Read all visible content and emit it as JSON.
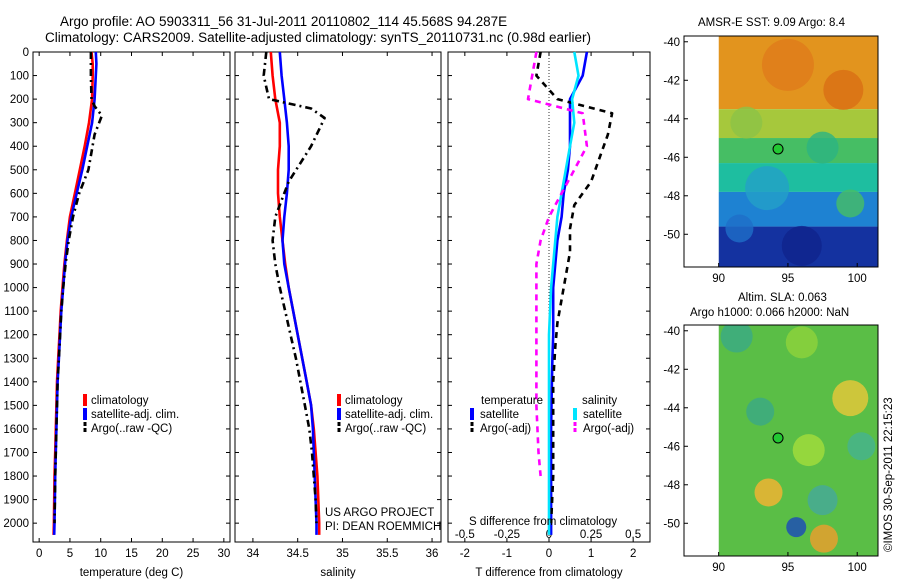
{
  "header": {
    "title_line1": "Argo profile: AO 5903311_56 31-Jul-2011 20110802_114 45.568S 94.287E",
    "title_line2": "Climatology: CARS2009. Satellite-adjusted climatology: synTS_20110731.nc (0.98d earlier)"
  },
  "colors": {
    "climatology": "#ff0000",
    "satellite": "#0000ff",
    "argo": "#000000",
    "sal_satellite": "#00e5ff",
    "sal_argo": "#ff00ff"
  },
  "panels": {
    "temp_legend": [
      "climatology",
      "satellite-adj. clim.",
      "Argo(..raw -QC)"
    ],
    "sal_legend": [
      "climatology",
      "satellite-adj. clim.",
      "Argo(..raw -QC)"
    ],
    "sal_credit_line1": "US ARGO PROJECT",
    "sal_credit_line2": "PI: DEAN ROEMMICH",
    "diff_legend_temp_header": "temperature",
    "diff_legend_sal_header": "salinity",
    "diff_legend_temp": [
      "satellite",
      "Argo(-adj)"
    ],
    "diff_legend_sal": [
      "satellite",
      "Argo(-adj)"
    ],
    "diff_top_axis_label": "S difference from climatology",
    "sst_title": "AMSR-E SST: 9.09 Argo: 8.4",
    "sla_title_line1": "Altim. SLA: 0.063",
    "sla_title_line2": "Argo h1000: 0.066 h2000: NaN",
    "timestamp": "©IMOS 30-Sep-2011 22:15:23"
  },
  "chart_data": [
    {
      "type": "line",
      "panel": "temperature",
      "xlabel": "temperature (deg C)",
      "ylabel": "",
      "xlim": [
        -1,
        31
      ],
      "ylim": [
        2080,
        0
      ],
      "xticks": [
        0,
        5,
        10,
        15,
        20,
        25,
        30
      ],
      "yticks": [
        0,
        100,
        200,
        300,
        400,
        500,
        600,
        700,
        800,
        900,
        1000,
        1100,
        1200,
        1300,
        1400,
        1500,
        1600,
        1700,
        1800,
        1900,
        2000
      ],
      "series": [
        {
          "name": "climatology",
          "color": "#ff0000",
          "dash": "",
          "x": [
            8.5,
            8.7,
            8.7,
            8.6,
            8.1,
            7.4,
            6.6,
            5.8,
            5.0,
            4.5,
            4.1,
            3.8,
            3.5,
            3.3,
            3.1,
            2.9,
            2.8,
            2.7,
            2.6,
            2.5,
            2.45,
            2.4,
            2.35
          ],
          "y": [
            0,
            50,
            100,
            200,
            300,
            400,
            500,
            600,
            700,
            800,
            900,
            1000,
            1100,
            1200,
            1300,
            1400,
            1500,
            1600,
            1700,
            1800,
            1900,
            2000,
            2050
          ]
        },
        {
          "name": "satellite-adj. clim.",
          "color": "#0000ff",
          "dash": "",
          "x": [
            9.2,
            9.3,
            9.2,
            9.0,
            8.6,
            7.8,
            7.0,
            6.1,
            5.2,
            4.6,
            4.2,
            3.9,
            3.6,
            3.4,
            3.2,
            3.0,
            2.9,
            2.8,
            2.7,
            2.6,
            2.55,
            2.5,
            2.45
          ],
          "y": [
            0,
            50,
            100,
            200,
            300,
            400,
            500,
            600,
            700,
            800,
            900,
            1000,
            1100,
            1200,
            1300,
            1400,
            1500,
            1600,
            1700,
            1800,
            1900,
            2000,
            2050
          ]
        },
        {
          "name": "Argo(..raw -QC)",
          "color": "#000000",
          "dash": "7,4,2,4",
          "x": [
            8.4,
            8.4,
            8.5,
            9.0,
            10.2,
            9.0,
            8.0,
            6.5,
            5.5,
            4.8,
            4.3,
            3.9,
            3.6,
            3.4,
            3.2,
            3.0,
            2.9,
            2.8,
            2.7,
            2.6,
            2.55,
            2.5
          ],
          "y": [
            0,
            100,
            200,
            230,
            270,
            350,
            500,
            600,
            700,
            800,
            900,
            1000,
            1100,
            1200,
            1300,
            1400,
            1500,
            1600,
            1700,
            1800,
            1900,
            2000
          ]
        }
      ]
    },
    {
      "type": "line",
      "panel": "salinity",
      "xlabel": "salinity",
      "xlim": [
        33.8,
        36.1
      ],
      "ylim": [
        2080,
        0
      ],
      "xticks": [
        34,
        34.5,
        35,
        35.5,
        36
      ],
      "series": [
        {
          "name": "climatology",
          "color": "#ff0000",
          "dash": "",
          "x": [
            34.2,
            34.22,
            34.25,
            34.3,
            34.3,
            34.28,
            34.28,
            34.3,
            34.33,
            34.36,
            34.4,
            34.45,
            34.5,
            34.55,
            34.6,
            34.65,
            34.68,
            34.7,
            34.72,
            34.73,
            34.74,
            34.74
          ],
          "y": [
            0,
            100,
            200,
            300,
            400,
            500,
            600,
            700,
            800,
            900,
            1000,
            1100,
            1200,
            1300,
            1400,
            1500,
            1600,
            1700,
            1800,
            1900,
            2000,
            2050
          ]
        },
        {
          "name": "satellite-adj. clim.",
          "color": "#0000ff",
          "dash": "",
          "x": [
            34.3,
            34.32,
            34.35,
            34.38,
            34.4,
            34.4,
            34.38,
            34.35,
            34.33,
            34.35,
            34.4,
            34.45,
            34.5,
            34.55,
            34.6,
            34.65,
            34.67,
            34.68,
            34.69,
            34.7,
            34.71,
            34.71
          ],
          "y": [
            0,
            100,
            200,
            300,
            400,
            500,
            600,
            700,
            800,
            900,
            1000,
            1100,
            1200,
            1300,
            1400,
            1500,
            1600,
            1700,
            1800,
            1900,
            2000,
            2050
          ]
        },
        {
          "name": "Argo(..raw -QC)",
          "color": "#000000",
          "dash": "7,4,2,4",
          "x": [
            34.15,
            34.12,
            34.18,
            34.65,
            34.8,
            34.65,
            34.4,
            34.25,
            34.22,
            34.25,
            34.3,
            34.36,
            34.42,
            34.48,
            34.53,
            34.58,
            34.63,
            34.66,
            34.68,
            34.7,
            34.71
          ],
          "y": [
            0,
            100,
            200,
            240,
            280,
            400,
            550,
            700,
            800,
            900,
            1000,
            1100,
            1200,
            1300,
            1400,
            1500,
            1600,
            1700,
            1800,
            1900,
            2000
          ]
        }
      ]
    },
    {
      "type": "line",
      "panel": "difference",
      "xlabel": "T difference from climatology",
      "x2label": "S difference from climatology",
      "xlim": [
        -2.4,
        2.4
      ],
      "ylim": [
        2080,
        0
      ],
      "xticks": [
        -2,
        -1,
        0,
        1,
        2
      ],
      "xticks2_labels": [
        "-0.5",
        "-0.25",
        "0",
        "0.25",
        "0.5"
      ],
      "series": [
        {
          "name": "temperature satellite",
          "color": "#0000ff",
          "dash": "",
          "x": [
            0.9,
            0.8,
            0.5,
            0.5,
            0.5,
            0.45,
            0.35,
            0.3,
            0.2,
            0.15,
            0.1,
            0.1,
            0.08,
            0.07,
            0.06,
            0.05,
            0.05,
            0.05,
            0.05,
            0.05
          ],
          "y": [
            0,
            100,
            200,
            300,
            400,
            500,
            600,
            700,
            800,
            900,
            1000,
            1200,
            1300,
            1400,
            1500,
            1600,
            1700,
            1800,
            1900,
            2050
          ]
        },
        {
          "name": "temperature Argo(-adj)",
          "color": "#000000",
          "dash": "6,5",
          "x": [
            -0.2,
            -0.3,
            0.2,
            1.5,
            1.4,
            1.2,
            1.0,
            0.6,
            0.5,
            0.5,
            0.4,
            0.3,
            0.2,
            0.15,
            0.1,
            0.1,
            0.1,
            0.05
          ],
          "y": [
            0,
            100,
            200,
            260,
            350,
            450,
            550,
            650,
            750,
            850,
            950,
            1050,
            1150,
            1250,
            1400,
            1600,
            1800,
            2000
          ]
        },
        {
          "name": "salinity satellite",
          "color": "#00e5ff",
          "dash": "",
          "x": [
            0.6,
            0.7,
            0.55,
            0.6,
            0.5,
            0.4,
            0.3,
            0.2,
            0.15,
            0.1,
            0.05,
            0.0,
            0.0,
            0.0,
            0.0,
            0.0,
            0.0
          ],
          "y": [
            0,
            100,
            200,
            300,
            400,
            500,
            600,
            700,
            800,
            900,
            1000,
            1200,
            1400,
            1600,
            1800,
            1950,
            2050
          ]
        },
        {
          "name": "salinity Argo(-adj)",
          "color": "#ff00ff",
          "dash": "6,5",
          "x": [
            -0.3,
            -0.4,
            -0.5,
            0.8,
            0.9,
            0.6,
            0.3,
            0.0,
            -0.2,
            -0.3,
            -0.3,
            -0.3,
            -0.3,
            -0.25,
            -0.2
          ],
          "y": [
            0,
            100,
            200,
            260,
            400,
            500,
            600,
            700,
            800,
            900,
            1100,
            1300,
            1500,
            1700,
            1800
          ]
        }
      ]
    },
    {
      "type": "heatmap",
      "panel": "sst_map",
      "title": "AMSR-E SST: 9.09 Argo: 8.4",
      "xlim": [
        87.5,
        101.5
      ],
      "ylim": [
        -51.7,
        -39.7
      ],
      "xticks": [
        90,
        95,
        100
      ],
      "yticks": [
        -40,
        -42,
        -44,
        -46,
        -48,
        -50
      ],
      "marker": {
        "lon": 94.287,
        "lat": -45.568
      },
      "zones": [
        {
          "lat_top": -39.7,
          "lat_bottom": -43.5,
          "color": "#e2941e"
        },
        {
          "lat_top": -43.5,
          "lat_bottom": -45.0,
          "color": "#a6c83c"
        },
        {
          "lat_top": -45.0,
          "lat_bottom": -46.3,
          "color": "#46be64"
        },
        {
          "lat_top": -46.3,
          "lat_bottom": -47.8,
          "color": "#1ebea0"
        },
        {
          "lat_top": -47.8,
          "lat_bottom": -49.6,
          "color": "#1e82d2"
        },
        {
          "lat_top": -49.6,
          "lat_bottom": -51.7,
          "color": "#1432a0"
        }
      ]
    },
    {
      "type": "heatmap",
      "panel": "sla_map",
      "title": "Altim. SLA: 0.063",
      "xlim": [
        87.5,
        101.5
      ],
      "ylim": [
        -51.7,
        -39.7
      ],
      "xticks": [
        90,
        95,
        100
      ],
      "yticks": [
        -40,
        -42,
        -44,
        -46,
        -48,
        -50
      ],
      "marker": {
        "lon": 94.287,
        "lat": -45.568
      },
      "base_color": "#5abe46"
    }
  ]
}
